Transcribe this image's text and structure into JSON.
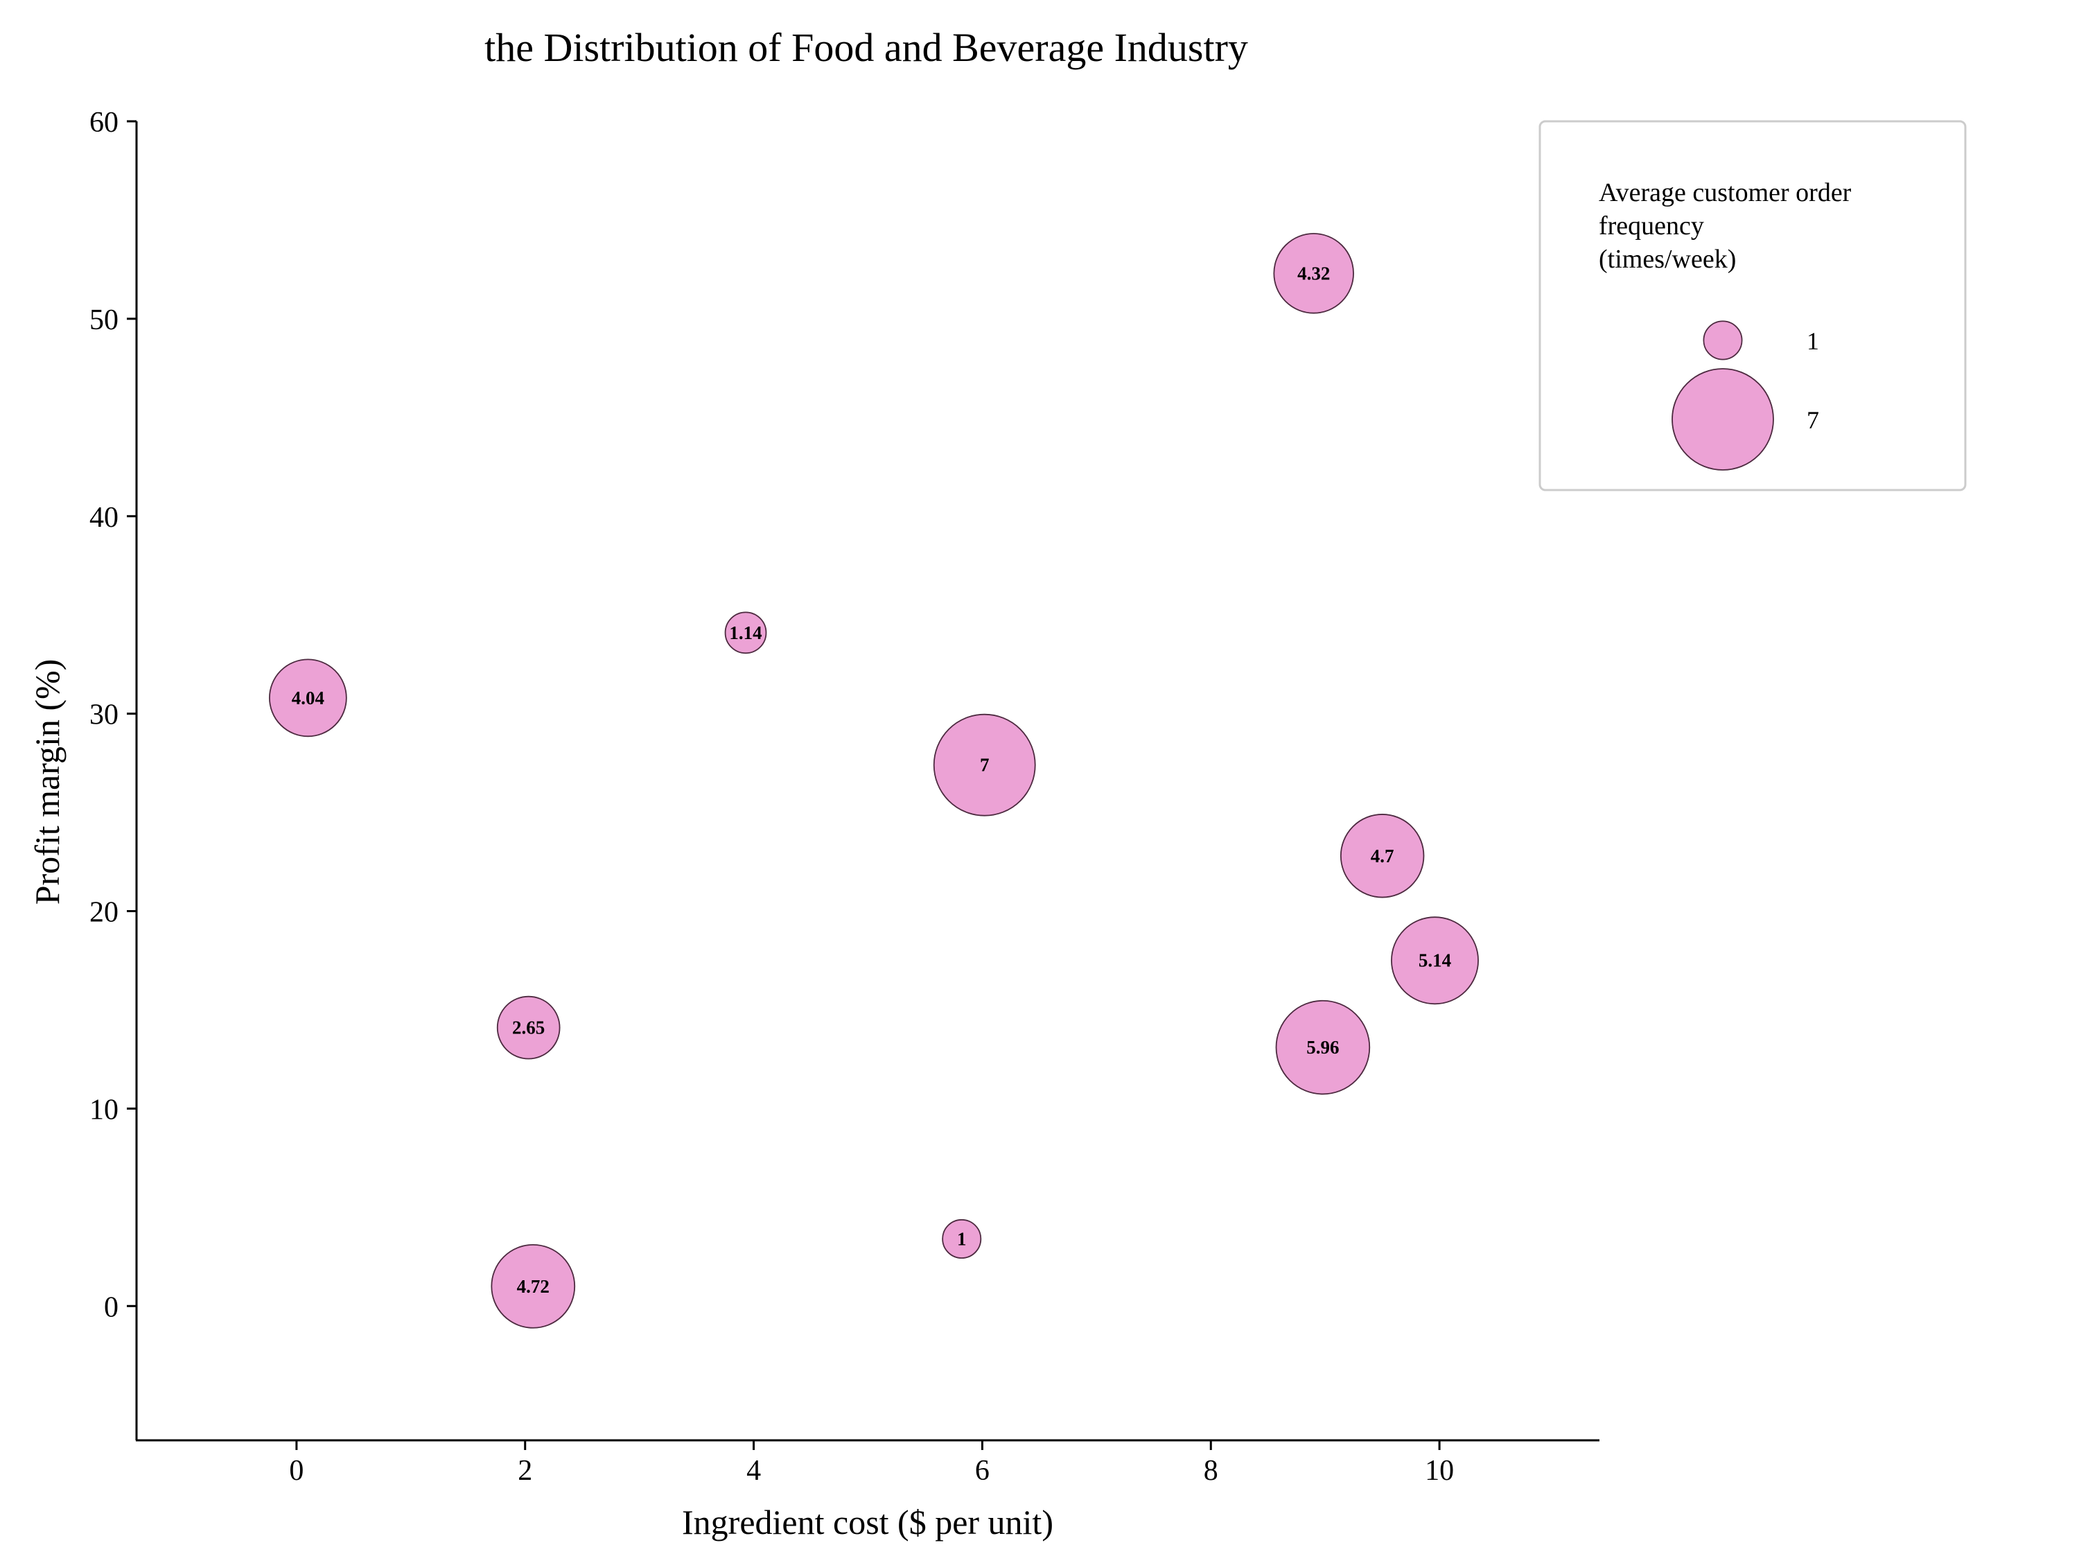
{
  "chart_data": {
    "type": "scatter",
    "title": "the Distribution of Food and Beverage Industry",
    "xlabel": "Ingredient cost ($ per unit)",
    "ylabel": "Profit margin (%)",
    "xlim": [
      -1.4,
      11.4
    ],
    "ylim": [
      -6.8,
      60
    ],
    "x_ticks": [
      "0",
      "2",
      "4",
      "6",
      "8",
      "10"
    ],
    "y_ticks": [
      "0",
      "10",
      "20",
      "30",
      "40",
      "50",
      "60"
    ],
    "grid": false,
    "marker_color": "#eca2d5",
    "marker_edge_color": "#4d2a40",
    "points": [
      {
        "x": 0.1,
        "y": 30.8,
        "size": 4.04,
        "label": "4.04"
      },
      {
        "x": 3.93,
        "y": 34.1,
        "size": 1.14,
        "label": "1.14"
      },
      {
        "x": 8.9,
        "y": 52.3,
        "size": 4.32,
        "label": "4.32"
      },
      {
        "x": 6.02,
        "y": 27.4,
        "size": 7,
        "label": "7"
      },
      {
        "x": 9.5,
        "y": 22.8,
        "size": 4.7,
        "label": "4.7"
      },
      {
        "x": 9.96,
        "y": 17.5,
        "size": 5.14,
        "label": "5.14"
      },
      {
        "x": 2.03,
        "y": 14.1,
        "size": 2.65,
        "label": "2.65"
      },
      {
        "x": 8.98,
        "y": 13.1,
        "size": 5.96,
        "label": "5.96"
      },
      {
        "x": 5.82,
        "y": 3.4,
        "size": 1,
        "label": "1"
      },
      {
        "x": 2.07,
        "y": 1.0,
        "size": 4.72,
        "label": "4.72"
      }
    ],
    "legend": {
      "placement": "top-right",
      "title_lines": [
        "Average customer order",
        "frequency",
        "(times/week)"
      ],
      "entries": [
        {
          "size": 1,
          "label": "1"
        },
        {
          "size": 7,
          "label": "7"
        }
      ]
    }
  }
}
